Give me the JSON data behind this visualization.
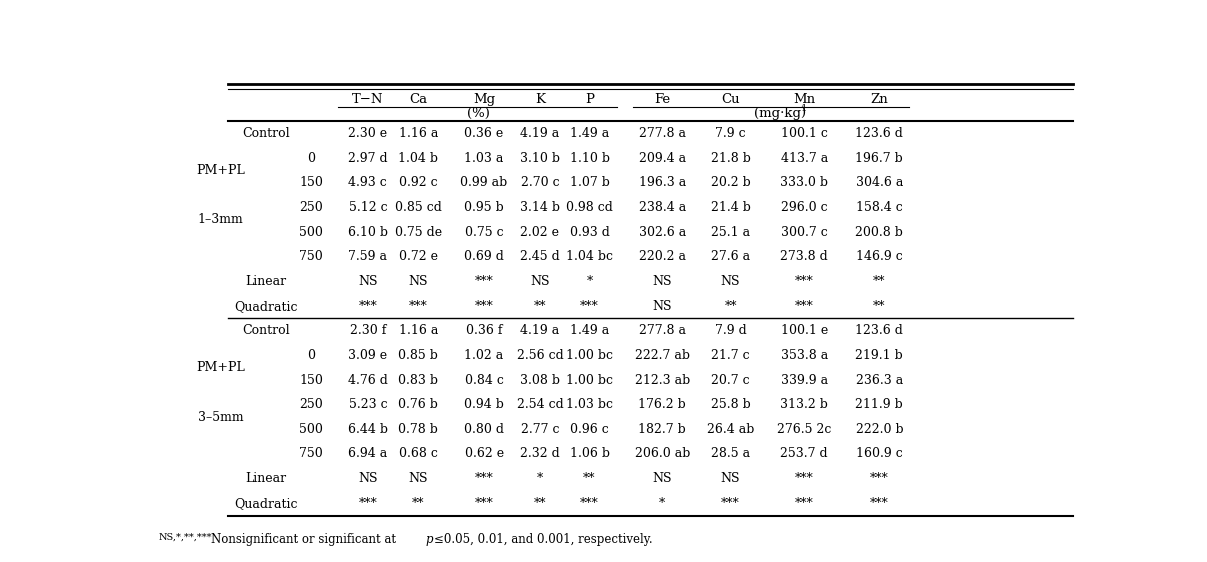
{
  "rows_section1": [
    [
      "Control",
      "",
      "2.30 e",
      "1.16 a",
      "0.36 e",
      "4.19 a",
      "1.49 a",
      "277.8 a",
      "7.9 c",
      "100.1 c",
      "123.6 d"
    ],
    [
      "",
      "0",
      "2.97 d",
      "1.04 b",
      "1.03 a",
      "3.10 b",
      "1.10 b",
      "209.4 a",
      "21.8 b",
      "413.7 a",
      "196.7 b"
    ],
    [
      "",
      "150",
      "4.93 c",
      "0.92 c",
      "0.99 ab",
      "2.70 c",
      "1.07 b",
      "196.3 a",
      "20.2 b",
      "333.0 b",
      "304.6 a"
    ],
    [
      "",
      "250",
      "5.12 c",
      "0.85 cd",
      "0.95 b",
      "3.14 b",
      "0.98 cd",
      "238.4 a",
      "21.4 b",
      "296.0 c",
      "158.4 c"
    ],
    [
      "",
      "500",
      "6.10 b",
      "0.75 de",
      "0.75 c",
      "2.02 e",
      "0.93 d",
      "302.6 a",
      "25.1 a",
      "300.7 c",
      "200.8 b"
    ],
    [
      "",
      "750",
      "7.59 a",
      "0.72 e",
      "0.69 d",
      "2.45 d",
      "1.04 bc",
      "220.2 a",
      "27.6 a",
      "273.8 d",
      "146.9 c"
    ],
    [
      "Linear",
      "",
      "NS",
      "NS",
      "***",
      "NS",
      "*",
      "NS",
      "NS",
      "***",
      "**"
    ],
    [
      "Quadratic",
      "",
      "***",
      "***",
      "***",
      "**",
      "***",
      "NS",
      "**",
      "***",
      "**"
    ]
  ],
  "rows_section2": [
    [
      "Control",
      "",
      "2.30 f",
      "1.16 a",
      "0.36 f",
      "4.19 a",
      "1.49 a",
      "277.8 a",
      "7.9 d",
      "100.1 e",
      "123.6 d"
    ],
    [
      "",
      "0",
      "3.09 e",
      "0.85 b",
      "1.02 a",
      "2.56 cd",
      "1.00 bc",
      "222.7 ab",
      "21.7 c",
      "353.8 a",
      "219.1 b"
    ],
    [
      "",
      "150",
      "4.76 d",
      "0.83 b",
      "0.84 c",
      "3.08 b",
      "1.00 bc",
      "212.3 ab",
      "20.7 c",
      "339.9 a",
      "236.3 a"
    ],
    [
      "",
      "250",
      "5.23 c",
      "0.76 b",
      "0.94 b",
      "2.54 cd",
      "1.03 bc",
      "176.2 b",
      "25.8 b",
      "313.2 b",
      "211.9 b"
    ],
    [
      "",
      "500",
      "6.44 b",
      "0.78 b",
      "0.80 d",
      "2.77 c",
      "0.96 c",
      "182.7 b",
      "26.4 ab",
      "276.5 2c",
      "222.0 b"
    ],
    [
      "",
      "750",
      "6.94 a",
      "0.68 c",
      "0.62 e",
      "2.32 d",
      "1.06 b",
      "206.0 ab",
      "28.5 a",
      "253.7 d",
      "160.9 c"
    ],
    [
      "Linear",
      "",
      "NS",
      "NS",
      "***",
      "*",
      "**",
      "NS",
      "NS",
      "***",
      "***"
    ],
    [
      "Quadratic",
      "",
      "***",
      "**",
      "***",
      "**",
      "***",
      "*",
      "***",
      "***",
      "***"
    ]
  ],
  "bg_color": "#ffffff",
  "text_color": "#000000",
  "font_size": 9.0,
  "header_font_size": 9.5
}
